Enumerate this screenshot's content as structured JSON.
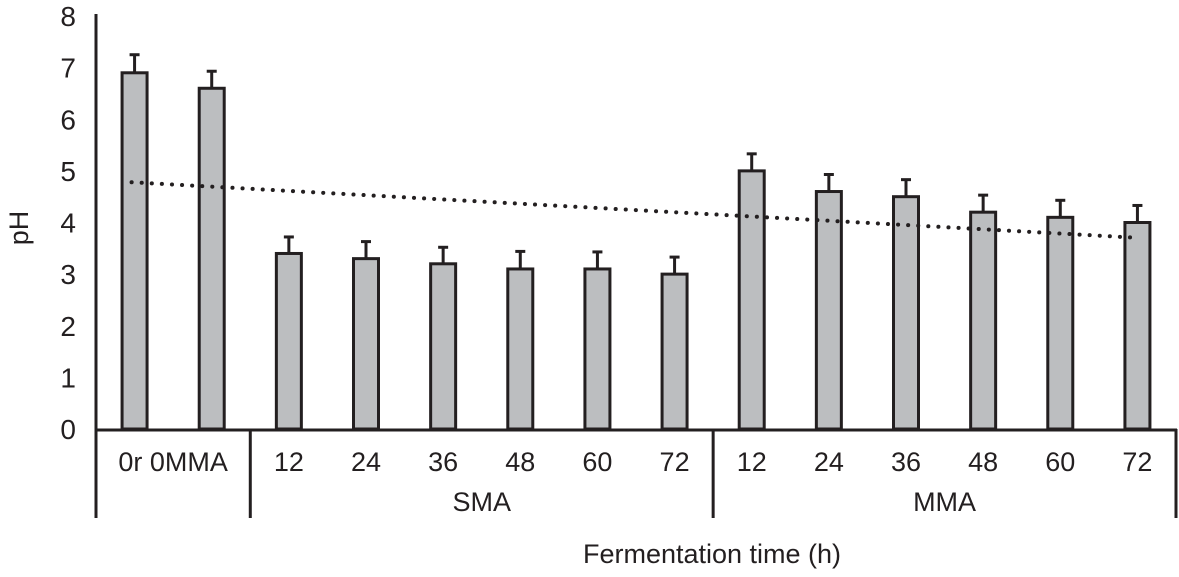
{
  "chart_data": {
    "type": "bar",
    "title": "",
    "xlabel": "Fermentation time (h)",
    "ylabel": "pH",
    "ylim": [
      0,
      8
    ],
    "yticks": [
      "0",
      "1",
      "2",
      "3",
      "4",
      "5",
      "6",
      "7",
      "8"
    ],
    "grid": false,
    "categories": [
      "0r 0MMA",
      "",
      "12",
      "24",
      "36",
      "48",
      "60",
      "72",
      "12",
      "24",
      "36",
      "48",
      "60",
      "72"
    ],
    "control_label": "0r 0MMA",
    "groups": [
      {
        "name": "SMA",
        "categories": [
          "12",
          "24",
          "36",
          "48",
          "60",
          "72"
        ]
      },
      {
        "name": "MMA",
        "categories": [
          "12",
          "24",
          "36",
          "48",
          "60",
          "72"
        ]
      }
    ],
    "series": [
      {
        "name": "pH",
        "values": [
          6.9,
          6.6,
          3.4,
          3.3,
          3.2,
          3.1,
          3.1,
          3.0,
          5.0,
          4.6,
          4.5,
          4.2,
          4.1,
          4.0
        ],
        "error": [
          0.35,
          0.33,
          0.32,
          0.33,
          0.32,
          0.34,
          0.33,
          0.33,
          0.33,
          0.33,
          0.33,
          0.33,
          0.33,
          0.33
        ]
      }
    ],
    "trendline": {
      "type": "linear",
      "style": "dotted",
      "start": 4.78,
      "end": 3.71
    },
    "colors": {
      "bar": "#bcbec0",
      "stroke": "#231f20"
    }
  }
}
